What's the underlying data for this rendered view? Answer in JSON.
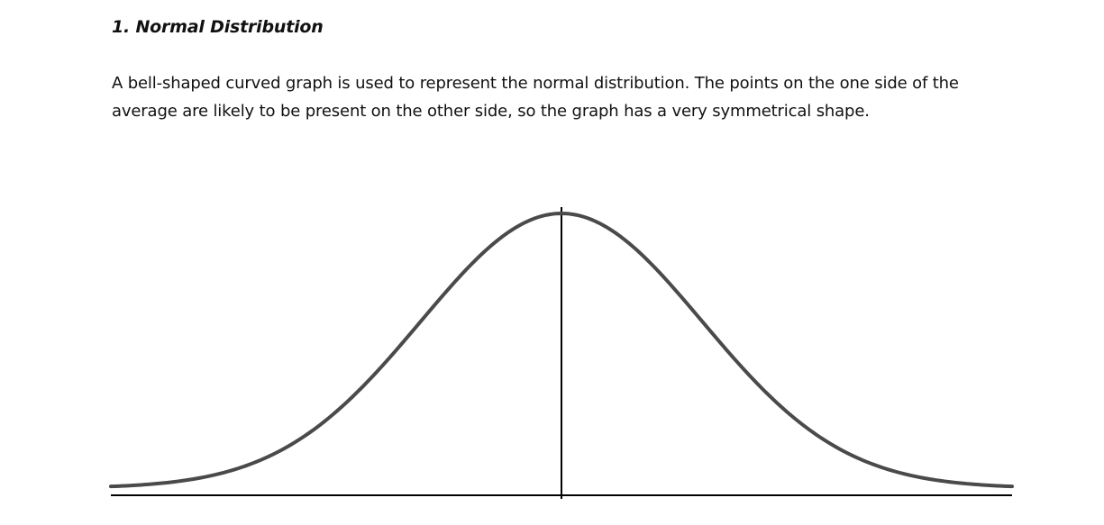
{
  "section": {
    "heading": "1. Normal Distribution",
    "paragraph": "A bell-shaped curved graph is used to represent the normal distribution. The points on the one side of the average are likely to be present on the other side, so the graph has a very symmetrical shape."
  },
  "chart_data": {
    "type": "line",
    "title": "",
    "xlabel": "",
    "ylabel": "",
    "xlim": [
      -3.2,
      3.2
    ],
    "ylim": [
      0,
      0.4
    ],
    "mean_line": 0,
    "grid": false,
    "series": [
      {
        "distribution": "normal",
        "mean": 0,
        "std": 1,
        "color": "#4a4a4a"
      }
    ],
    "axis_color": "#000000"
  }
}
